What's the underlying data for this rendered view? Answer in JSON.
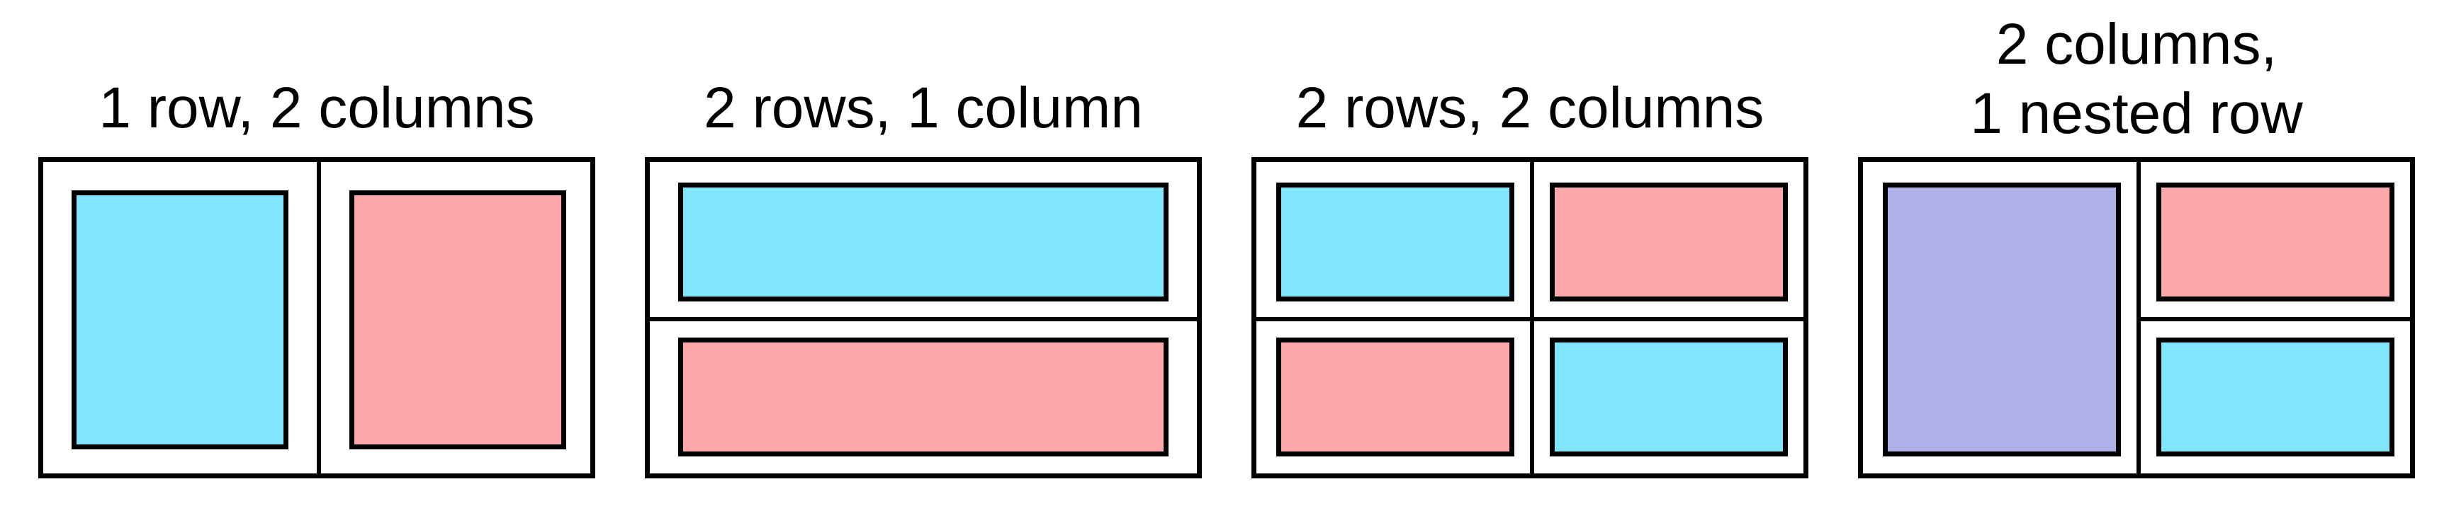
{
  "colors": {
    "cyan": "#80e6fd",
    "pink": "#fda8ab",
    "lavender": "#afb0e8",
    "outline": "#000000",
    "background": "#ffffff"
  },
  "panels": [
    {
      "label": "1 row, 2 columns",
      "cells": [
        "cyan",
        "pink"
      ]
    },
    {
      "label": "2 rows, 1 column",
      "cells": [
        "cyan",
        "pink"
      ]
    },
    {
      "label": "2 rows, 2 columns",
      "cells": [
        "cyan",
        "pink",
        "pink",
        "cyan"
      ]
    },
    {
      "label_line1": "2 columns,",
      "label_line2": "1 nested row",
      "cells": [
        "lavender",
        "pink",
        "cyan"
      ]
    }
  ]
}
